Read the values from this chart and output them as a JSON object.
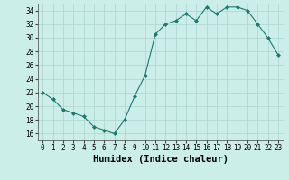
{
  "x": [
    0,
    1,
    2,
    3,
    4,
    5,
    6,
    7,
    8,
    9,
    10,
    11,
    12,
    13,
    14,
    15,
    16,
    17,
    18,
    19,
    20,
    21,
    22,
    23
  ],
  "y": [
    22,
    21,
    19.5,
    19,
    18.5,
    17,
    16.5,
    16,
    18,
    21.5,
    24.5,
    30.5,
    32,
    32.5,
    33.5,
    32.5,
    34.5,
    33.5,
    34.5,
    34.5,
    34,
    32,
    30,
    27.5
  ],
  "line_color": "#1a7a6e",
  "marker": "D",
  "marker_size": 2.0,
  "bg_color": "#cceee8",
  "grid_color": "#b0d8d2",
  "xlabel": "Humidex (Indice chaleur)",
  "xlim": [
    -0.5,
    23.5
  ],
  "ylim": [
    15,
    35
  ],
  "yticks": [
    16,
    18,
    20,
    22,
    24,
    26,
    28,
    30,
    32,
    34
  ],
  "xticks": [
    0,
    1,
    2,
    3,
    4,
    5,
    6,
    7,
    8,
    9,
    10,
    11,
    12,
    13,
    14,
    15,
    16,
    17,
    18,
    19,
    20,
    21,
    22,
    23
  ],
  "tick_fontsize": 5.5,
  "xlabel_fontsize": 7.5,
  "linewidth": 0.8
}
